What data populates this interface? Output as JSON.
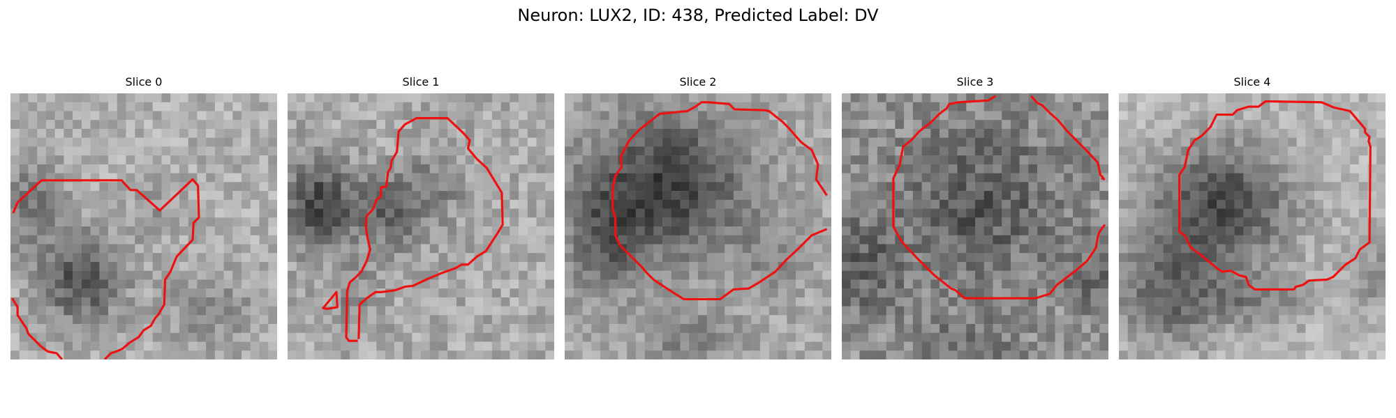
{
  "figure": {
    "title": "Neuron: LUX2, ID: 438, Predicted Label: DV"
  },
  "contour_color": "#ee1111",
  "panels": [
    {
      "title": "Slice 0",
      "image_description": "grayscale microscopy patch with dark region at lower center; red contour segments"
    },
    {
      "title": "Slice 1",
      "image_description": "grayscale microscopy patch with dark region at left-center; red contour outlining upper-center region"
    },
    {
      "title": "Slice 2",
      "image_description": "grayscale microscopy patch with large dark rounded soma at center; red contour around it"
    },
    {
      "title": "Slice 3",
      "image_description": "grayscale noisy microscopy patch with medium-gray rounded soma; red octagonal contour"
    },
    {
      "title": "Slice 4",
      "image_description": "grayscale microscopy patch with dark triangular soma; red contour around it"
    }
  ]
}
